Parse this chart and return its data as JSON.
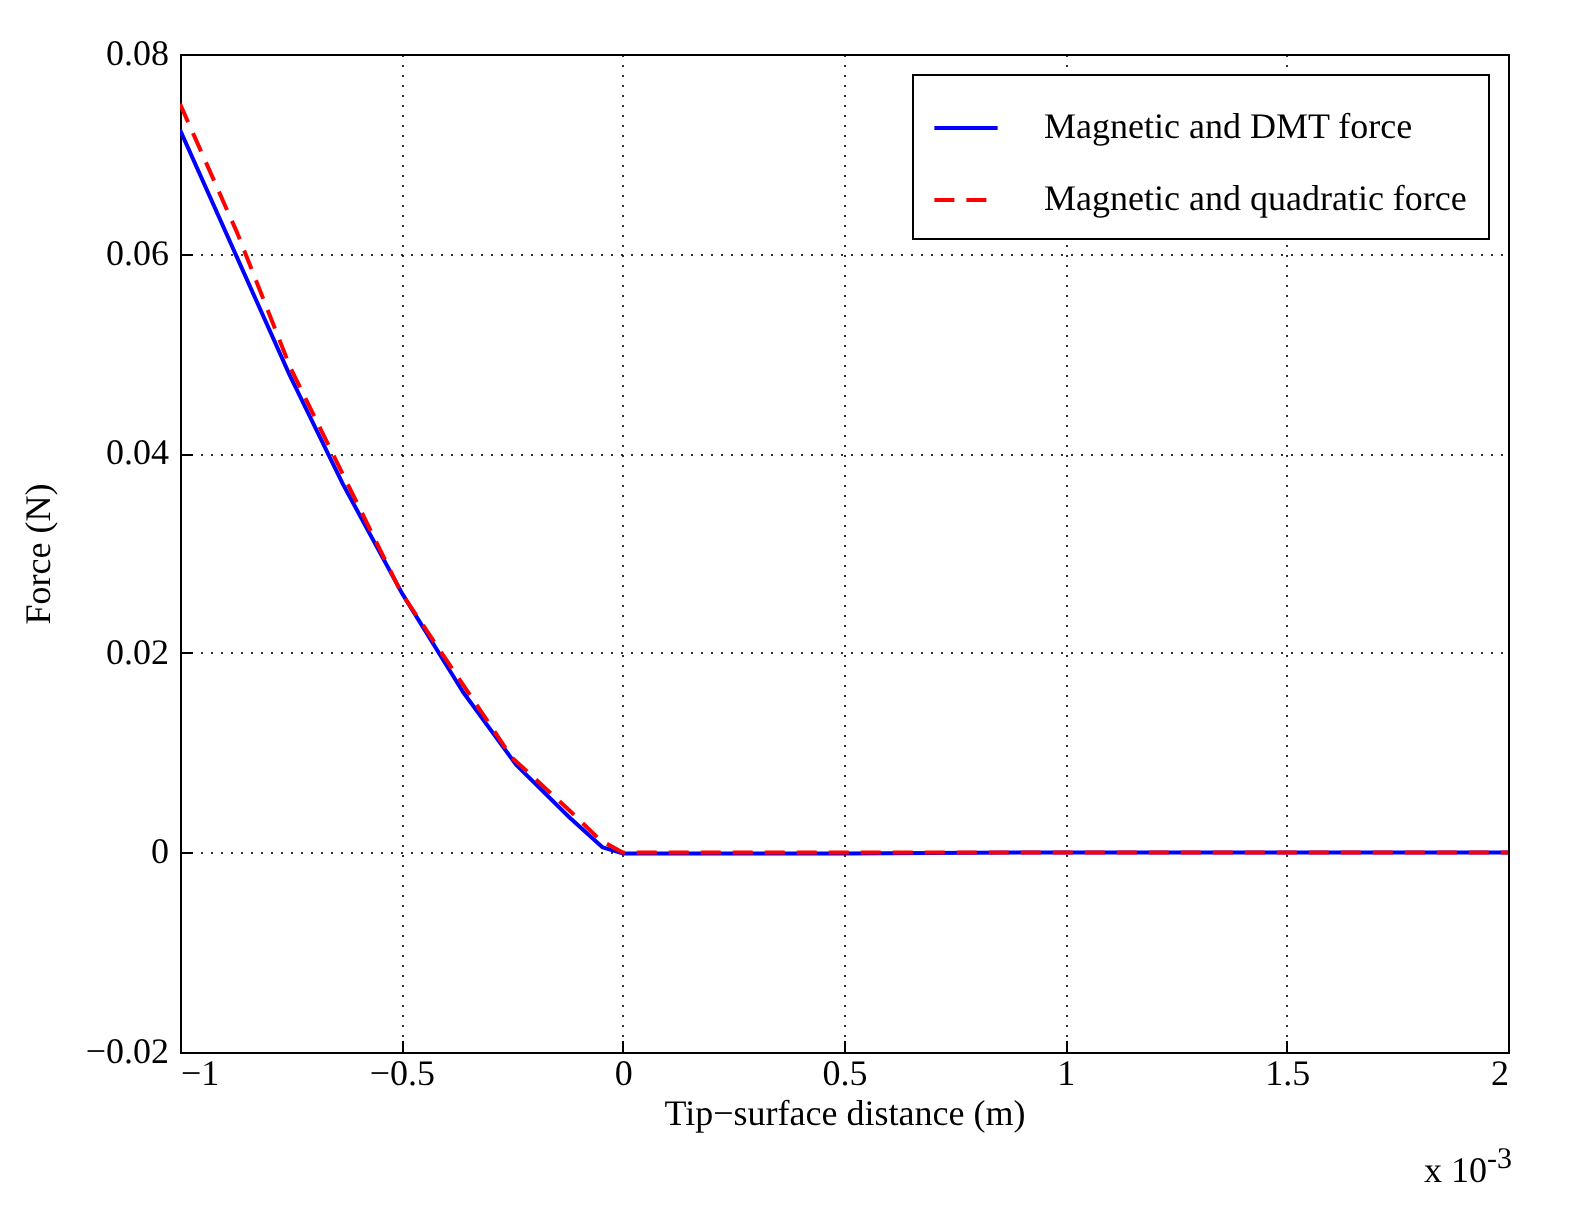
{
  "chart_data": {
    "type": "line",
    "xlabel": "Tip−surface distance (m)",
    "ylabel": "Force (N)",
    "annotations": [
      "x 10$^{-3}$"
    ],
    "series": [
      {
        "name": "Magnetic and DMT force",
        "color": "#0000ff",
        "line_style": "solid",
        "x": [
          -1,
          -0.872,
          -0.752,
          -0.632,
          -0.499,
          -0.361,
          -0.241,
          -0.12,
          -0.045,
          0,
          0.5,
          1,
          1.5,
          2
        ],
        "values": [
          0.0724,
          0.0597,
          0.0478,
          0.0369,
          0.026,
          0.0161,
          0.0088,
          0.0035,
          0.0005,
          -0.0001,
          -0.0001,
          0,
          0,
          0
        ]
      },
      {
        "name": "Magnetic and quadratic force",
        "color": "#ff0000",
        "line_style": "dashed",
        "x": [
          -1,
          -0.87,
          -0.75,
          -0.5,
          -0.25,
          -0.12,
          -0.05,
          0,
          0.5,
          1,
          1.5,
          2
        ],
        "values": [
          0.075,
          0.062,
          0.0485,
          0.026,
          0.0095,
          0.0042,
          0.0012,
          0,
          0,
          0,
          0,
          0
        ]
      }
    ],
    "xlim": [
      -1,
      2
    ],
    "xticks": [
      -1,
      -0.5,
      0,
      0.5,
      1,
      1.5,
      2
    ],
    "ylim": [
      -0.02,
      0.08
    ],
    "yticks": [
      -0.02,
      0,
      0.02,
      0.04,
      0.06,
      0.08
    ],
    "grid": true,
    "legend": "top right"
  }
}
